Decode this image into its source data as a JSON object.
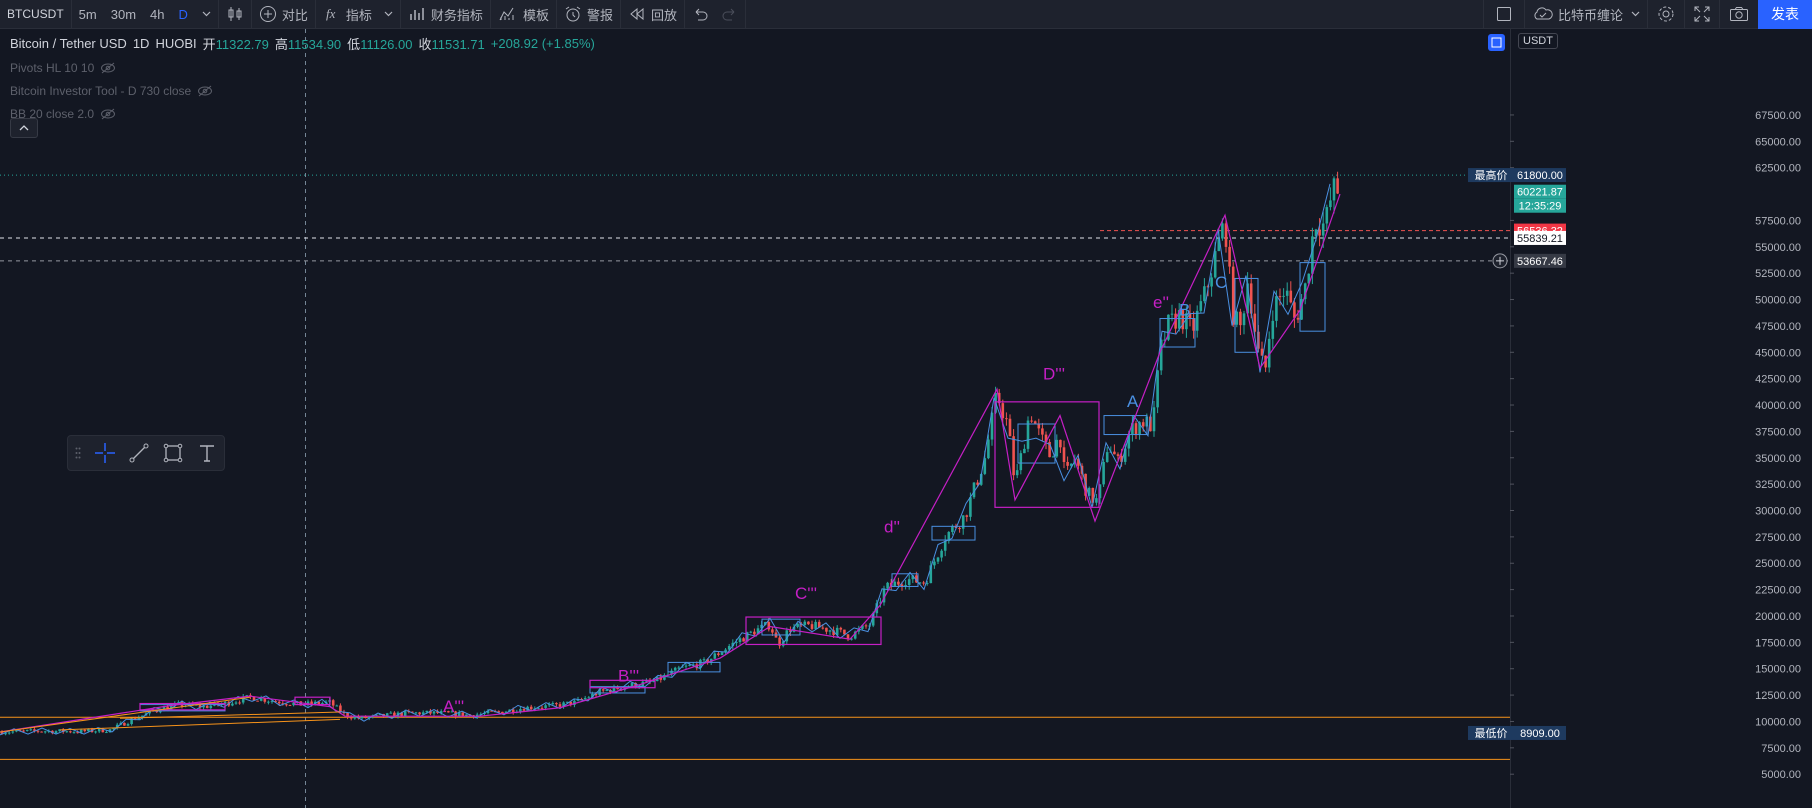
{
  "toolbar": {
    "symbol": "BTCUSDT",
    "intervals": [
      "5m",
      "30m",
      "4h",
      "D"
    ],
    "compare_label": "对比",
    "indicators_label": "指标",
    "financials_label": "财务指标",
    "templates_label": "模板",
    "alerts_label": "警报",
    "replay_label": "回放",
    "layout_name": "比特币缠论",
    "publish_label": "发表"
  },
  "legend": {
    "title": "Bitcoin / Tether USD",
    "interval": "1D",
    "exchange": "HUOBI",
    "open_label": "开",
    "open": "11322.79",
    "high_label": "高",
    "high": "11534.90",
    "low_label": "低",
    "low": "11126.00",
    "close_label": "收",
    "close": "11531.71",
    "change": "+208.92 (+1.85%)",
    "indicators": [
      {
        "label": "Pivots HL 10 10"
      },
      {
        "label": "Bitcoin Investor Tool - D 730 close"
      },
      {
        "label": "BB 20 close 2.0"
      }
    ]
  },
  "price_axis": {
    "currency": "USDT",
    "ticks": [
      "67500.00",
      "65000.00",
      "62500.00",
      "57500.00",
      "55000.00",
      "52500.00",
      "50000.00",
      "47500.00",
      "45000.00",
      "42500.00",
      "40000.00",
      "37500.00",
      "35000.00",
      "32500.00",
      "30000.00",
      "27500.00",
      "25000.00",
      "22500.00",
      "20000.00",
      "17500.00",
      "15000.00",
      "12500.00",
      "10000.00",
      "7500.00",
      "5000.00"
    ],
    "high_tag_label": "最高价",
    "high_tag_value": "61800.00",
    "last_price": "60221.87",
    "countdown": "12:35:29",
    "red_line_value": "56536.32",
    "white_line_value": "55839.21",
    "crosshair_value": "53667.46",
    "low_tag_label": "最低价",
    "low_tag_value": "8909.00"
  },
  "waves": {
    "A3": "A'''",
    "B3": "B'''",
    "C3": "C'''",
    "d2": "d''",
    "D3": "D'''",
    "A": "A",
    "e2": "e''",
    "B": "B",
    "C": "C"
  },
  "colors": {
    "background": "#131722",
    "up": "#26a69a",
    "down": "#ef5350",
    "accent": "#2962ff",
    "zigzag": "#c51fc5",
    "fine_wave": "#4a90e2",
    "orange": "#f7931a"
  },
  "drawing_tools": [
    "drag-handle-icon",
    "crosshair-icon",
    "trendline-icon",
    "rectangle-icon",
    "text-icon"
  ]
}
